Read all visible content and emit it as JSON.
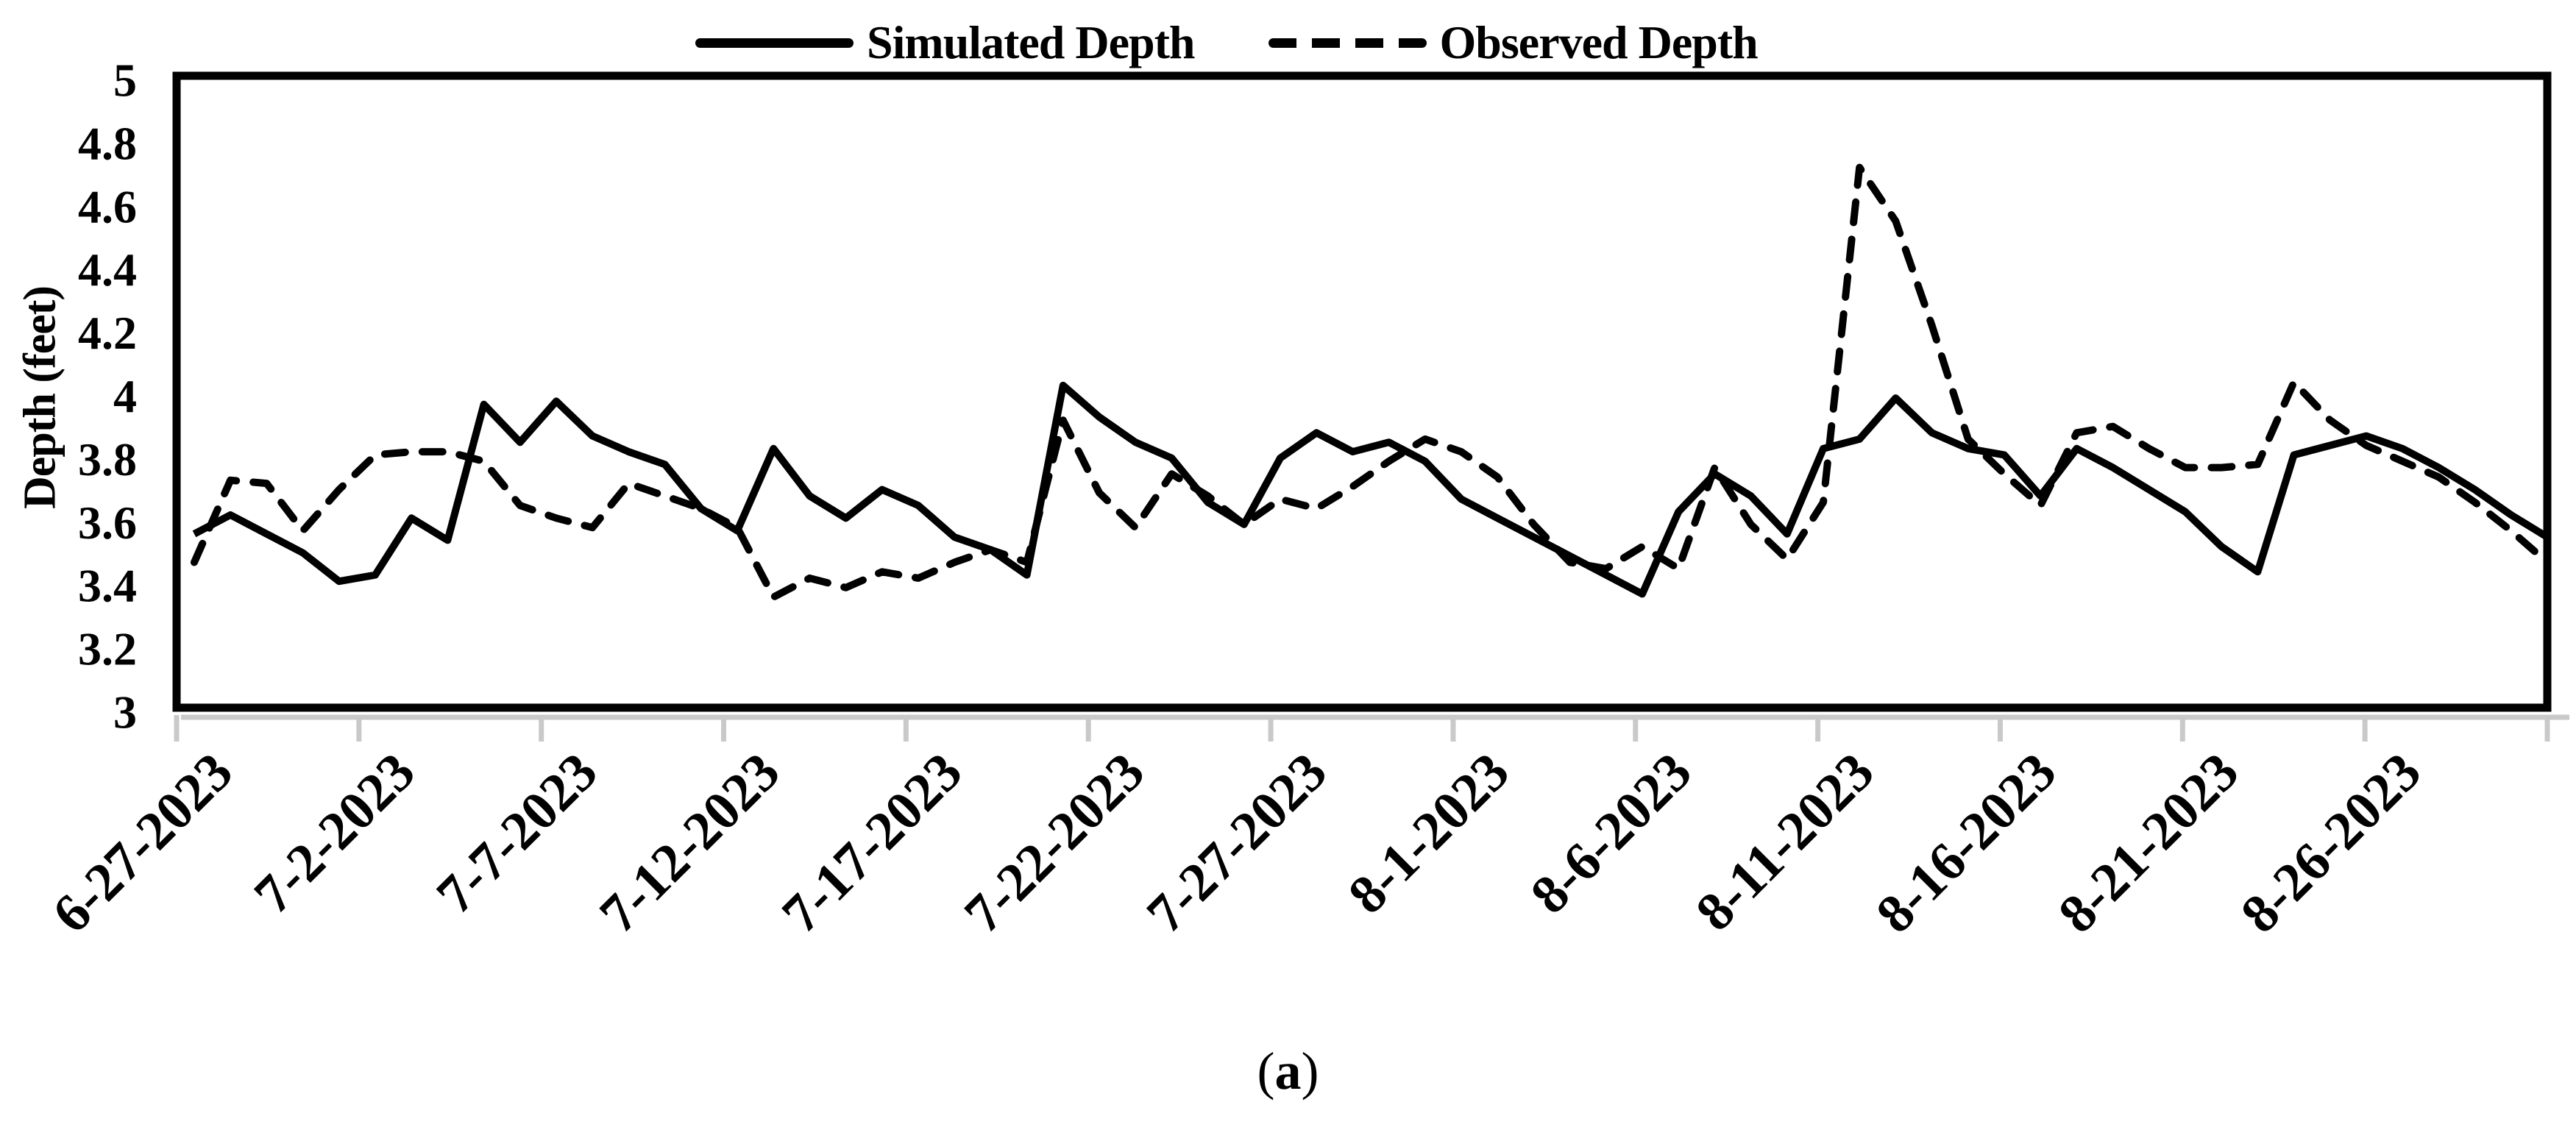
{
  "figure": {
    "caption_open": "(",
    "caption_letter": "a",
    "caption_close": ")"
  },
  "colors": {
    "line": "#000000",
    "axis_shadow": "#c9c9c9",
    "background": "#ffffff",
    "text": "#000000"
  },
  "chart_data": {
    "type": "line",
    "title": "",
    "xlabel": "",
    "ylabel": "Depth (feet)",
    "ylim": [
      3,
      5
    ],
    "ytick_values": [
      3,
      3.2,
      3.4,
      3.6,
      3.8,
      4,
      4.2,
      4.4,
      4.6,
      4.8,
      5
    ],
    "ytick_labels": [
      "3",
      "3.2",
      "3.4",
      "3.6",
      "3.8",
      "4",
      "4.2",
      "4.4",
      "4.6",
      "4.8",
      "5"
    ],
    "x_tick_labels": [
      "6-27-2023",
      "7-2-2023",
      "7-7-2023",
      "7-12-2023",
      "7-17-2023",
      "7-22-2023",
      "7-27-2023",
      "8-1-2023",
      "8-6-2023",
      "8-11-2023",
      "8-16-2023",
      "8-21-2023",
      "8-26-2023"
    ],
    "x_tick_every": 5,
    "grid": false,
    "legend_position": "top",
    "x": [
      "6-27-2023",
      "6-28-2023",
      "6-29-2023",
      "6-30-2023",
      "7-1-2023",
      "7-2-2023",
      "7-3-2023",
      "7-4-2023",
      "7-5-2023",
      "7-6-2023",
      "7-7-2023",
      "7-8-2023",
      "7-9-2023",
      "7-10-2023",
      "7-11-2023",
      "7-12-2023",
      "7-13-2023",
      "7-14-2023",
      "7-15-2023",
      "7-16-2023",
      "7-17-2023",
      "7-18-2023",
      "7-19-2023",
      "7-20-2023",
      "7-21-2023",
      "7-22-2023",
      "7-23-2023",
      "7-24-2023",
      "7-25-2023",
      "7-26-2023",
      "7-27-2023",
      "7-28-2023",
      "7-29-2023",
      "7-30-2023",
      "7-31-2023",
      "8-1-2023",
      "8-2-2023",
      "8-3-2023",
      "8-4-2023",
      "8-5-2023",
      "8-6-2023",
      "8-7-2023",
      "8-8-2023",
      "8-9-2023",
      "8-10-2023",
      "8-11-2023",
      "8-12-2023",
      "8-13-2023",
      "8-14-2023",
      "8-15-2023",
      "8-16-2023",
      "8-17-2023",
      "8-18-2023",
      "8-19-2023",
      "8-20-2023",
      "8-21-2023",
      "8-22-2023",
      "8-23-2023",
      "8-24-2023",
      "8-25-2023",
      "8-26-2023",
      "8-27-2023",
      "8-28-2023",
      "8-29-2023",
      "8-30-2023",
      "8-31-2023"
    ],
    "series": [
      {
        "name": "Simulated Depth",
        "style": "solid",
        "values": [
          3.55,
          3.61,
          3.55,
          3.49,
          3.4,
          3.42,
          3.6,
          3.53,
          3.96,
          3.84,
          3.97,
          3.86,
          3.81,
          3.77,
          3.63,
          3.56,
          3.82,
          3.67,
          3.6,
          3.69,
          3.64,
          3.54,
          3.5,
          3.42,
          4.02,
          3.92,
          3.84,
          3.79,
          3.65,
          3.58,
          3.79,
          3.87,
          3.81,
          3.84,
          3.78,
          3.66,
          3.6,
          3.54,
          3.48,
          3.42,
          3.36,
          3.62,
          3.74,
          3.67,
          3.55,
          3.82,
          3.85,
          3.98,
          3.87,
          3.82,
          3.8,
          3.67,
          3.82,
          3.76,
          3.69,
          3.62,
          3.51,
          3.43,
          3.8,
          3.83,
          3.86,
          3.82,
          3.76,
          3.69,
          3.61,
          3.54
        ]
      },
      {
        "name": "Observed Depth",
        "style": "dashed",
        "values": [
          3.46,
          3.72,
          3.71,
          3.56,
          3.69,
          3.8,
          3.81,
          3.81,
          3.78,
          3.64,
          3.6,
          3.57,
          3.71,
          3.67,
          3.63,
          3.57,
          3.35,
          3.41,
          3.38,
          3.43,
          3.41,
          3.46,
          3.5,
          3.46,
          3.91,
          3.68,
          3.57,
          3.74,
          3.67,
          3.58,
          3.66,
          3.63,
          3.7,
          3.78,
          3.85,
          3.81,
          3.73,
          3.58,
          3.46,
          3.44,
          3.51,
          3.44,
          3.76,
          3.58,
          3.47,
          3.65,
          4.71,
          4.54,
          4.21,
          3.85,
          3.74,
          3.64,
          3.87,
          3.89,
          3.82,
          3.76,
          3.76,
          3.77,
          4.03,
          3.91,
          3.83,
          3.78,
          3.73,
          3.65,
          3.56,
          3.46
        ]
      }
    ]
  }
}
